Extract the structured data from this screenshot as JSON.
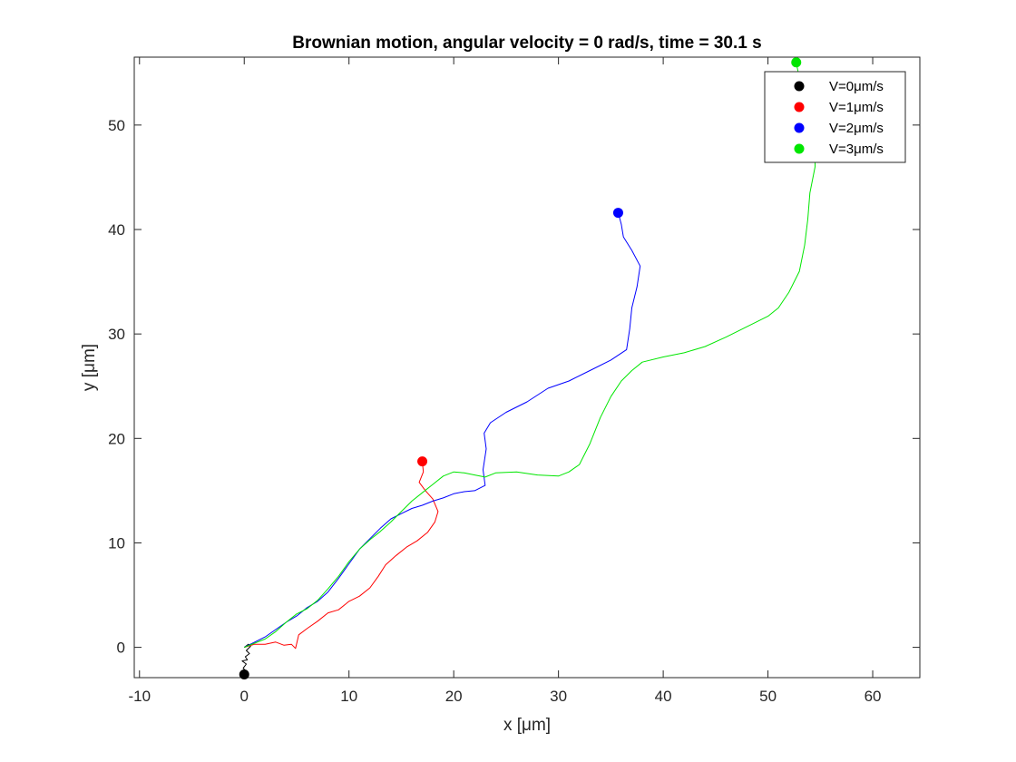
{
  "chart_data": {
    "type": "line",
    "title": "Brownian motion, angular velocity = 0 rad/s, time = 30.1 s",
    "xlabel": "x [μm]",
    "ylabel": "y [μm]",
    "xlim": [
      -10.5,
      64.5
    ],
    "ylim": [
      -2.9,
      56.5
    ],
    "xticks": [
      -10,
      0,
      10,
      20,
      30,
      40,
      50,
      60
    ],
    "yticks": [
      0,
      10,
      20,
      30,
      40,
      50
    ],
    "grid": false,
    "legend_position": "top-right",
    "series": [
      {
        "name": "V=0μm/s",
        "color": "#000000",
        "points": [
          [
            0,
            0
          ],
          [
            0.4,
            0.3
          ],
          [
            0.6,
            0.1
          ],
          [
            0.2,
            -0.3
          ],
          [
            0.5,
            -0.6
          ],
          [
            0.1,
            -0.9
          ],
          [
            0.3,
            -1.2
          ],
          [
            -0.2,
            -1.3
          ],
          [
            0.2,
            -1.6
          ],
          [
            -0.1,
            -2.0
          ],
          [
            0.2,
            -2.3
          ],
          [
            0.0,
            -2.6
          ]
        ],
        "end": [
          0.0,
          -2.6
        ]
      },
      {
        "name": "V=1μm/s",
        "color": "#ff0000",
        "points": [
          [
            0,
            0
          ],
          [
            1,
            0.3
          ],
          [
            2,
            0.3
          ],
          [
            3,
            0.5
          ],
          [
            3.8,
            0.2
          ],
          [
            4.5,
            0.3
          ],
          [
            4.9,
            -0.1
          ],
          [
            5.2,
            1.2
          ],
          [
            6,
            1.8
          ],
          [
            7,
            2.5
          ],
          [
            8,
            3.3
          ],
          [
            9,
            3.6
          ],
          [
            10,
            4.4
          ],
          [
            11,
            4.9
          ],
          [
            12,
            5.7
          ],
          [
            12.8,
            6.8
          ],
          [
            13.5,
            7.9
          ],
          [
            14.5,
            8.8
          ],
          [
            15.5,
            9.6
          ],
          [
            16.5,
            10.2
          ],
          [
            17.5,
            11.0
          ],
          [
            18.2,
            12.0
          ],
          [
            18.5,
            13.0
          ],
          [
            18.0,
            14.2
          ],
          [
            17.3,
            15.0
          ],
          [
            16.7,
            15.8
          ],
          [
            17.1,
            16.8
          ],
          [
            17.0,
            17.8
          ]
        ],
        "end": [
          17.0,
          17.8
        ]
      },
      {
        "name": "V=2μm/s",
        "color": "#0000ff",
        "points": [
          [
            0,
            0
          ],
          [
            1,
            0.5
          ],
          [
            2,
            1.0
          ],
          [
            3,
            1.7
          ],
          [
            4,
            2.4
          ],
          [
            5,
            3.0
          ],
          [
            6,
            3.8
          ],
          [
            7,
            4.4
          ],
          [
            8,
            5.3
          ],
          [
            9,
            6.6
          ],
          [
            10,
            8.0
          ],
          [
            11,
            9.4
          ],
          [
            12,
            10.4
          ],
          [
            13,
            11.4
          ],
          [
            14,
            12.3
          ],
          [
            15,
            12.8
          ],
          [
            16,
            13.3
          ],
          [
            17,
            13.6
          ],
          [
            18,
            14.0
          ],
          [
            19,
            14.3
          ],
          [
            20,
            14.7
          ],
          [
            21,
            14.9
          ],
          [
            22,
            15.0
          ],
          [
            23,
            15.5
          ],
          [
            22.8,
            17.0
          ],
          [
            23.1,
            19.0
          ],
          [
            22.9,
            20.5
          ],
          [
            23.5,
            21.5
          ],
          [
            25,
            22.5
          ],
          [
            27,
            23.5
          ],
          [
            29,
            24.8
          ],
          [
            31,
            25.5
          ],
          [
            33,
            26.5
          ],
          [
            35,
            27.5
          ],
          [
            36.5,
            28.5
          ],
          [
            36.8,
            30.5
          ],
          [
            37.0,
            32.5
          ],
          [
            37.5,
            34.5
          ],
          [
            37.8,
            36.5
          ],
          [
            37.0,
            38.0
          ],
          [
            36.2,
            39.3
          ],
          [
            36.0,
            40.5
          ],
          [
            35.7,
            41.6
          ]
        ],
        "end": [
          35.7,
          41.6
        ]
      },
      {
        "name": "V=3μm/s",
        "color": "#00e600",
        "points": [
          [
            0,
            0
          ],
          [
            1,
            0.4
          ],
          [
            2,
            0.8
          ],
          [
            3,
            1.5
          ],
          [
            4,
            2.4
          ],
          [
            5,
            3.2
          ],
          [
            6,
            3.7
          ],
          [
            7,
            4.5
          ],
          [
            8,
            5.6
          ],
          [
            9,
            6.8
          ],
          [
            10,
            8.2
          ],
          [
            11,
            9.4
          ],
          [
            12,
            10.3
          ],
          [
            13,
            11.1
          ],
          [
            14,
            12.0
          ],
          [
            15,
            13.0
          ],
          [
            16,
            14.0
          ],
          [
            17,
            14.8
          ],
          [
            18,
            15.6
          ],
          [
            19,
            16.4
          ],
          [
            20,
            16.8
          ],
          [
            21,
            16.7
          ],
          [
            22,
            16.5
          ],
          [
            23,
            16.3
          ],
          [
            24,
            16.7
          ],
          [
            26,
            16.8
          ],
          [
            28,
            16.5
          ],
          [
            30,
            16.4
          ],
          [
            31,
            16.8
          ],
          [
            32,
            17.5
          ],
          [
            33,
            19.5
          ],
          [
            34,
            22.0
          ],
          [
            35,
            24.0
          ],
          [
            36,
            25.5
          ],
          [
            37,
            26.5
          ],
          [
            38,
            27.3
          ],
          [
            40,
            27.8
          ],
          [
            42,
            28.2
          ],
          [
            44,
            28.8
          ],
          [
            46,
            29.7
          ],
          [
            48,
            30.7
          ],
          [
            50,
            31.7
          ],
          [
            51,
            32.5
          ],
          [
            52,
            34.0
          ],
          [
            53,
            36.0
          ],
          [
            53.5,
            38.5
          ],
          [
            53.8,
            41.0
          ],
          [
            54.0,
            43.5
          ],
          [
            54.5,
            46.0
          ],
          [
            54.5,
            48.5
          ],
          [
            54.0,
            50.5
          ],
          [
            53.5,
            52.5
          ],
          [
            53.0,
            54.5
          ],
          [
            52.7,
            56.0
          ]
        ],
        "end": [
          52.7,
          56.0
        ]
      }
    ]
  }
}
